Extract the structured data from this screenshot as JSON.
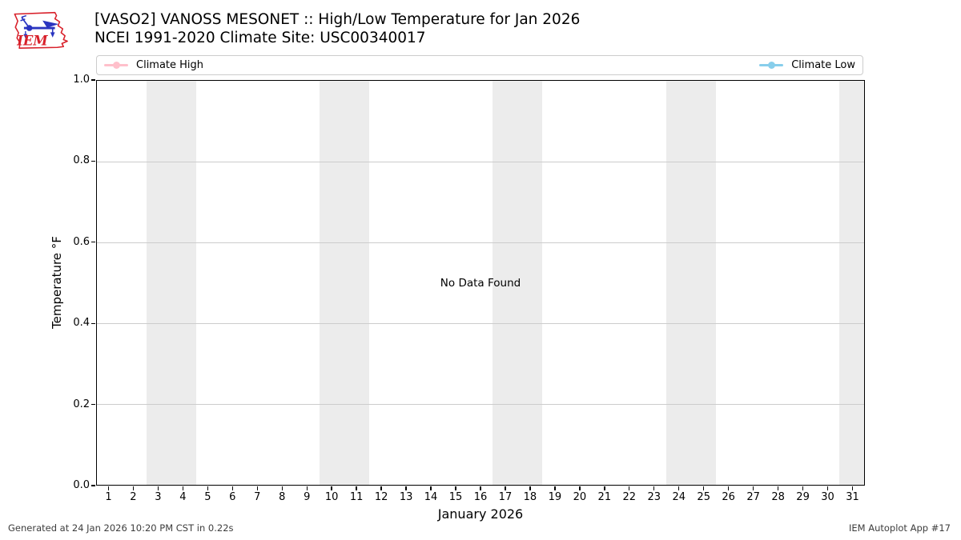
{
  "header": {
    "title": "[VASO2] VANOSS MESONET :: High/Low Temperature for Jan 2026",
    "subtitle": "NCEI 1991-2020 Climate Site: USC00340017",
    "logo_text": "IEM"
  },
  "legend": {
    "items": [
      {
        "label": "Climate High",
        "color": "#ffc0cb"
      },
      {
        "label": "Climate Low",
        "color": "#87ceeb"
      }
    ]
  },
  "chart_data": {
    "type": "line",
    "title": "[VASO2] VANOSS MESONET :: High/Low Temperature for Jan 2026",
    "subtitle": "NCEI 1991-2020 Climate Site: USC00340017",
    "xlabel": "January 2026",
    "ylabel": "Temperature °F",
    "xlim": [
      0.5,
      31.5
    ],
    "ylim": [
      0.0,
      1.0
    ],
    "x_ticks": [
      1,
      2,
      3,
      4,
      5,
      6,
      7,
      8,
      9,
      10,
      11,
      12,
      13,
      14,
      15,
      16,
      17,
      18,
      19,
      20,
      21,
      22,
      23,
      24,
      25,
      26,
      27,
      28,
      29,
      30,
      31
    ],
    "y_ticks": [
      "0.0",
      "0.2",
      "0.4",
      "0.6",
      "0.8",
      "1.0"
    ],
    "grid": true,
    "gridline_color": "#cccccc",
    "weekend_bands": [
      [
        2.5,
        4.5
      ],
      [
        9.5,
        11.5
      ],
      [
        16.5,
        18.5
      ],
      [
        23.5,
        25.5
      ],
      [
        30.5,
        31.5
      ]
    ],
    "band_color": "#ececec",
    "no_data_message": "No Data Found",
    "legend_position": "top",
    "series": [
      {
        "name": "Climate High",
        "color": "#ffc0cb",
        "x": [],
        "values": []
      },
      {
        "name": "Climate Low",
        "color": "#87ceeb",
        "x": [],
        "values": []
      }
    ]
  },
  "footer": {
    "generated": "Generated at 24 Jan 2026 10:20 PM CST in 0.22s",
    "app": "IEM Autoplot App #17"
  }
}
